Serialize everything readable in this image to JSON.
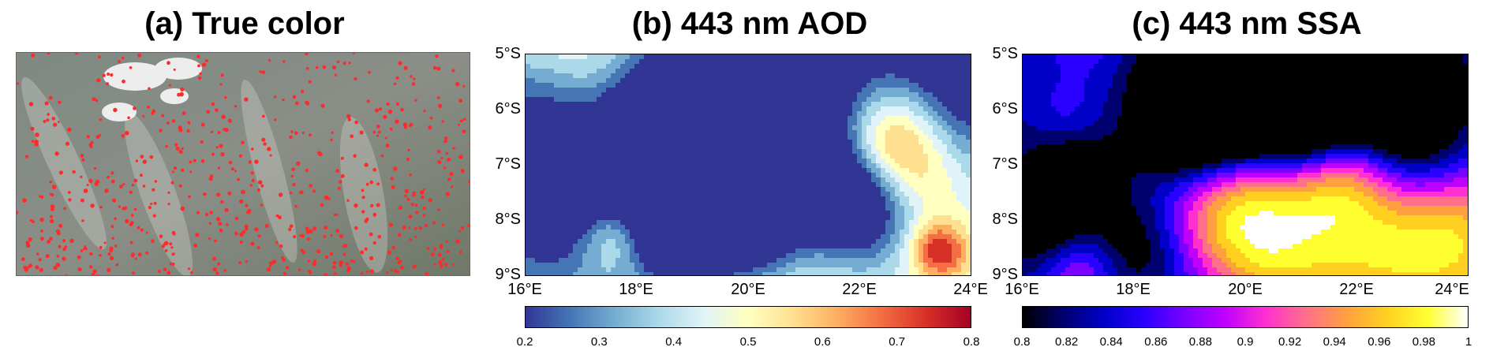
{
  "panels": {
    "a": {
      "title": "(a) True color"
    },
    "b": {
      "title": "(b) 443 nm AOD",
      "lat_ticks": [
        "5°S",
        "6°S",
        "7°S",
        "8°S",
        "9°S"
      ],
      "lon_ticks": [
        "16°E",
        "18°E",
        "20°E",
        "22°E",
        "24°E"
      ],
      "colorbar_ticks": [
        "0.2",
        "0.3",
        "0.4",
        "0.5",
        "0.6",
        "0.7",
        "0.8"
      ],
      "colorbar_range": [
        0.2,
        0.8
      ],
      "colormap": [
        "#313695",
        "#4575b4",
        "#74add1",
        "#abd9e9",
        "#e0f3f8",
        "#ffffbf",
        "#fee090",
        "#fdae61",
        "#f46d43",
        "#d73027",
        "#a50026"
      ]
    },
    "c": {
      "title": "(c) 443 nm SSA",
      "lat_ticks": [
        "5°S",
        "6°S",
        "7°S",
        "8°S",
        "9°S"
      ],
      "lon_ticks": [
        "16°E",
        "18°E",
        "20°E",
        "22°E",
        "24°E"
      ],
      "colorbar_ticks": [
        "0.8",
        "0.82",
        "0.84",
        "0.86",
        "0.88",
        "0.9",
        "0.92",
        "0.94",
        "0.96",
        "0.98",
        "1"
      ],
      "colorbar_range": [
        0.8,
        1.0
      ],
      "colormap": [
        "#000000",
        "#00006e",
        "#0000c8",
        "#2a00ff",
        "#7a00ff",
        "#c000ff",
        "#ff2fd0",
        "#ff6f8a",
        "#ffa040",
        "#ffd020",
        "#ffff30",
        "#ffffff"
      ]
    }
  }
}
